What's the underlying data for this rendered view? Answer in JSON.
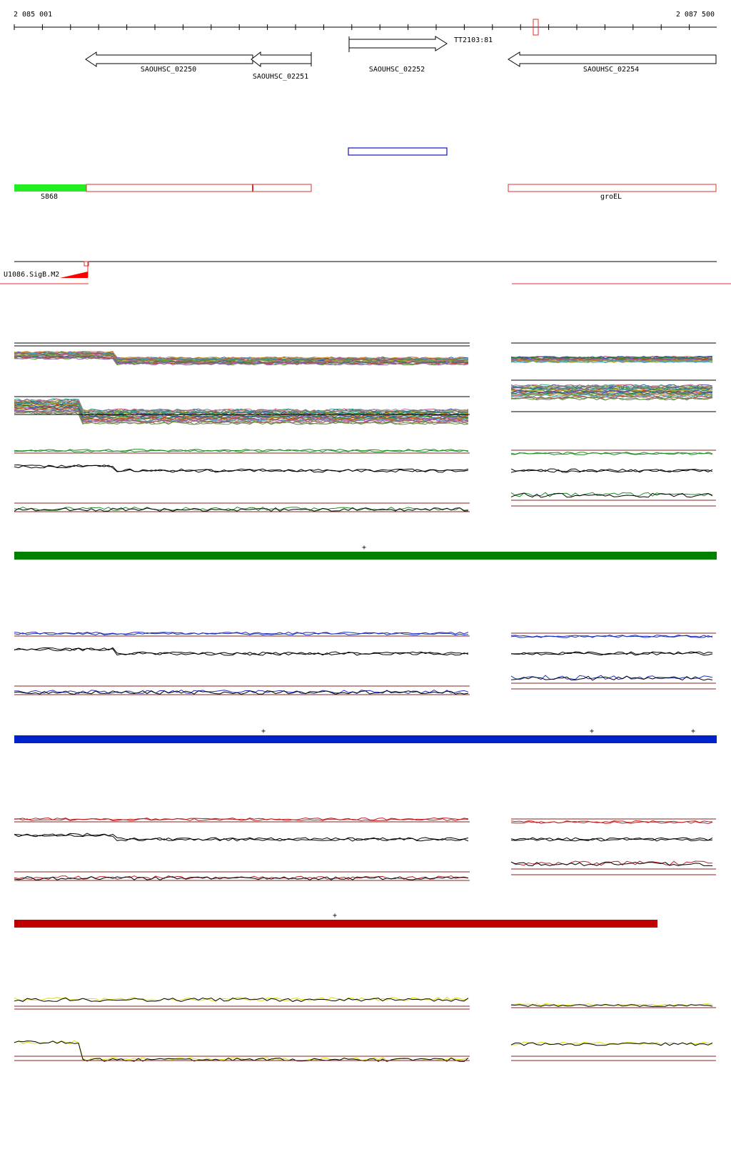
{
  "ruler": {
    "start_label": "2 085 001",
    "end_label": "2 087 500"
  },
  "genes": [
    {
      "id": "gene-02250",
      "label": "SAOUHSC_02250",
      "strand": "-"
    },
    {
      "id": "gene-02251",
      "label": "SAOUHSC_02251",
      "strand": "-"
    },
    {
      "id": "gene-02252",
      "label": "SAOUHSC_02252",
      "strand": "+"
    },
    {
      "id": "gene-02254",
      "label": "SAOUHSC_02254",
      "strand": "-"
    }
  ],
  "terminator": {
    "label": "TT2103:81"
  },
  "regions": [
    {
      "id": "s868",
      "label": "S868"
    },
    {
      "id": "groel",
      "label": "groEL"
    }
  ],
  "motif": {
    "label": "U1086.SigB.M2"
  },
  "condition_bars": [
    {
      "id": "green",
      "color": "#008000",
      "strand_marks": [
        "+"
      ]
    },
    {
      "id": "blue",
      "color": "#0022cc",
      "strand_marks": [
        "+",
        "+",
        "+"
      ]
    },
    {
      "id": "red",
      "color": "#c00000",
      "strand_marks": [
        "+"
      ]
    }
  ],
  "colors": {
    "gene_outline": "#000000",
    "region_outline": "#e03030",
    "region_fill_green": "#22ee22",
    "highlight_box": "#2222cc",
    "baseline": "#8b2020",
    "yellow_trace": "#dddd00"
  }
}
